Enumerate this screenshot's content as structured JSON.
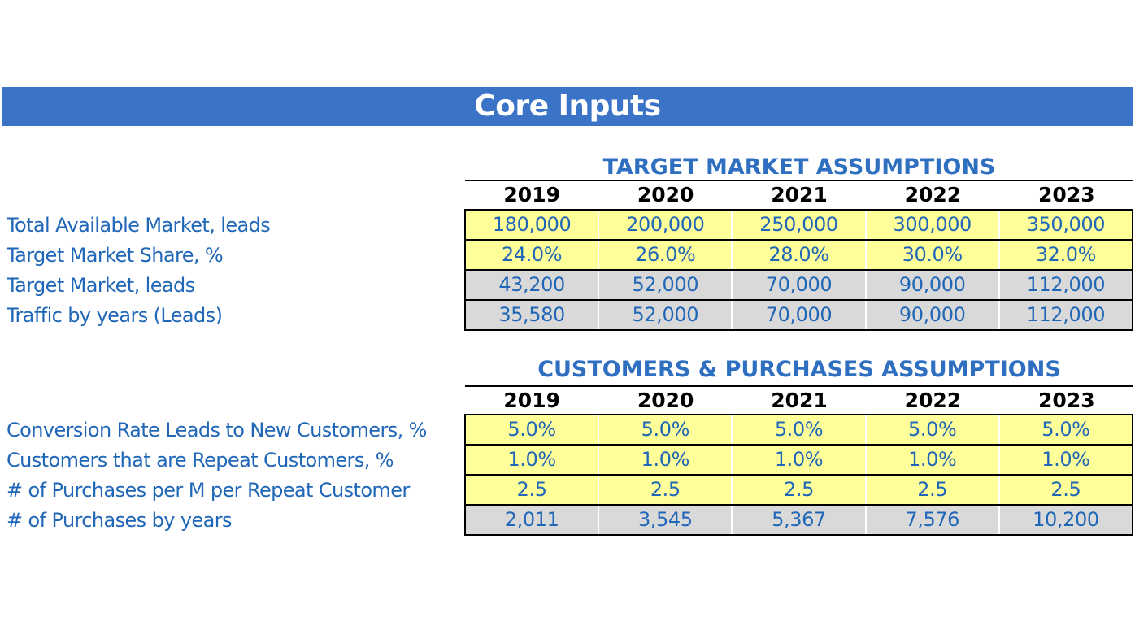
{
  "banner": {
    "title": "Core Inputs"
  },
  "target_market": {
    "title": "TARGET MARKET ASSUMPTIONS",
    "years": [
      "2019",
      "2020",
      "2021",
      "2022",
      "2023"
    ],
    "rows": [
      {
        "label": "Total Available Market, leads",
        "style": "input",
        "values": [
          "180,000",
          "200,000",
          "250,000",
          "300,000",
          "350,000"
        ]
      },
      {
        "label": "Target Market Share, %",
        "style": "input",
        "values": [
          "24.0%",
          "26.0%",
          "28.0%",
          "30.0%",
          "32.0%"
        ]
      },
      {
        "label": "Target Market, leads",
        "style": "calculated",
        "values": [
          "43,200",
          "52,000",
          "70,000",
          "90,000",
          "112,000"
        ]
      },
      {
        "label": "Traffic by years (Leads)",
        "style": "calculated",
        "values": [
          "35,580",
          "52,000",
          "70,000",
          "90,000",
          "112,000"
        ]
      }
    ]
  },
  "customers": {
    "title": "CUSTOMERS & PURCHASES ASSUMPTIONS",
    "years": [
      "2019",
      "2020",
      "2021",
      "2022",
      "2023"
    ],
    "rows": [
      {
        "label": "Conversion Rate Leads to New Customers, %",
        "style": "input",
        "values": [
          "5.0%",
          "5.0%",
          "5.0%",
          "5.0%",
          "5.0%"
        ]
      },
      {
        "label": "Customers that are Repeat Customers, %",
        "style": "input",
        "values": [
          "1.0%",
          "1.0%",
          "1.0%",
          "1.0%",
          "1.0%"
        ]
      },
      {
        "label": "# of Purchases per M per Repeat Customer",
        "style": "input",
        "values": [
          "2.5",
          "2.5",
          "2.5",
          "2.5",
          "2.5"
        ]
      },
      {
        "label": "# of Purchases by years",
        "style": "calculated",
        "values": [
          "2,011",
          "3,545",
          "5,367",
          "7,576",
          "10,200"
        ]
      }
    ]
  },
  "colors": {
    "banner": "#3b73c6",
    "title_blue": "#2f6fc0",
    "text_blue": "#2167b8",
    "input_cell": "#ffff99",
    "calculated_cell": "#d9d9d9"
  }
}
